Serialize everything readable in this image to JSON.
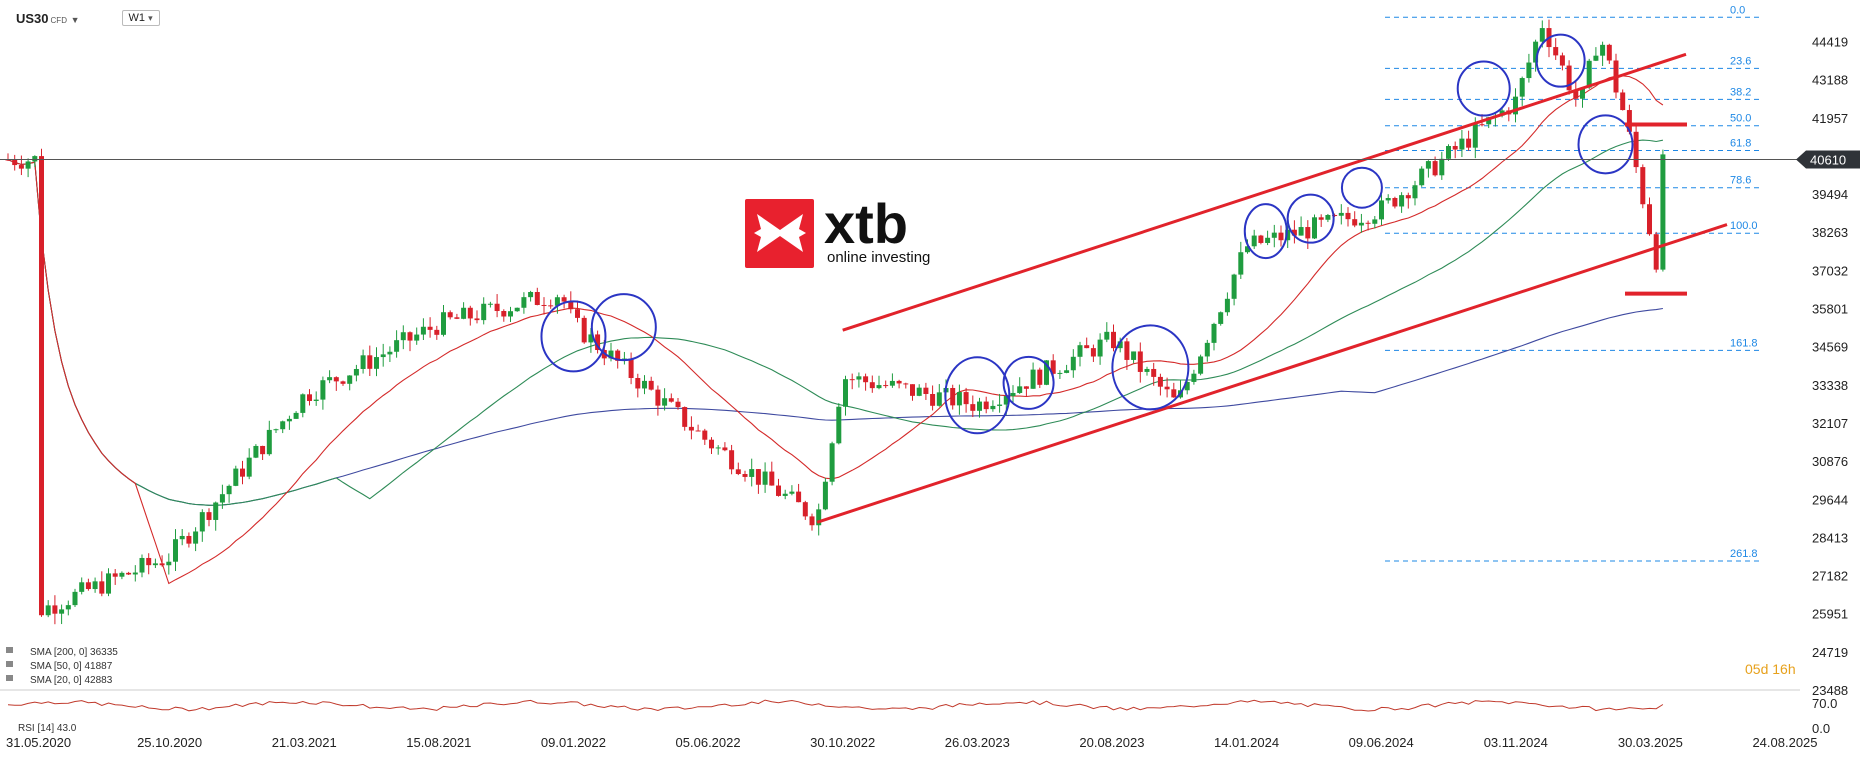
{
  "header": {
    "symbol": "US30",
    "symbol_suffix": "CFD",
    "timeframe": "W1"
  },
  "logo": {
    "brand": "xtb",
    "tagline": "online investing",
    "color": "#e8212e"
  },
  "countdown": "05d 16h",
  "indicators": [
    {
      "label": "SMA [200, 0]",
      "value": "36335",
      "color": "#3f4aa0"
    },
    {
      "label": "SMA [50, 0]",
      "value": "41887",
      "color": "#2e8b57"
    },
    {
      "label": "SMA [20, 0]",
      "value": "42883",
      "color": "#d42a2a"
    }
  ],
  "rsi": {
    "label": "RSI [14]",
    "value": "43.0",
    "levels": [
      "70.0",
      "0.0"
    ],
    "color": "#c0392b"
  },
  "colors": {
    "bull": "#1f9c3f",
    "bear": "#d8202a",
    "channel": "#e1232b",
    "circle": "#2b35c4",
    "fib": "#1e88e5"
  },
  "chart_data": {
    "type": "candlestick",
    "title": "",
    "xlabel": "",
    "ylabel": "",
    "y_ticks": [
      "44419",
      "43188",
      "41957",
      "40610",
      "39494",
      "38263",
      "37032",
      "35801",
      "34569",
      "33338",
      "32107",
      "30876",
      "29644",
      "28413",
      "27182",
      "25951",
      "24719",
      "23488"
    ],
    "current_price": "40610",
    "x_ticks": [
      "31.05.2020",
      "25.10.2020",
      "21.03.2021",
      "15.08.2021",
      "09.01.2022",
      "05.06.2022",
      "30.10.2022",
      "26.03.2023",
      "20.08.2023",
      "14.01.2024",
      "09.06.2024",
      "03.11.2024",
      "30.03.2025",
      "24.08.2025"
    ],
    "ylim": [
      23488,
      45500
    ],
    "fib_levels": [
      {
        "label": "0.0",
        "price": 45200
      },
      {
        "label": "23.6",
        "price": 43550
      },
      {
        "label": "38.2",
        "price": 42550
      },
      {
        "label": "50.0",
        "price": 41700
      },
      {
        "label": "61.8",
        "price": 40900
      },
      {
        "label": "78.6",
        "price": 39700
      },
      {
        "label": "100.0",
        "price": 38230
      },
      {
        "label": "161.8",
        "price": 34450
      },
      {
        "label": "261.8",
        "price": 27650
      }
    ],
    "support_levels": [
      41740,
      36280
    ],
    "price_path": [
      [
        "31.05.2020",
        26000
      ],
      [
        "25.10.2020",
        27800
      ],
      [
        "21.03.2021",
        33000
      ],
      [
        "15.08.2021",
        35300
      ],
      [
        "26.12.2021",
        36300
      ],
      [
        "09.01.2022",
        35300
      ],
      [
        "05.06.2022",
        31500
      ],
      [
        "02.10.2022",
        29000
      ],
      [
        "30.10.2022",
        33600
      ],
      [
        "26.03.2023",
        32700
      ],
      [
        "20.08.2023",
        34800
      ],
      [
        "30.10.2023",
        32700
      ],
      [
        "14.01.2024",
        37800
      ],
      [
        "09.06.2024",
        39000
      ],
      [
        "03.11.2024",
        42500
      ],
      [
        "02.12.2024",
        45000
      ],
      [
        "12.01.2025",
        42300
      ],
      [
        "02.02.2025",
        44700
      ],
      [
        "02.03.2025",
        42000
      ],
      [
        "06.04.2025",
        37300
      ],
      [
        "13.04.2025",
        40610
      ]
    ]
  }
}
